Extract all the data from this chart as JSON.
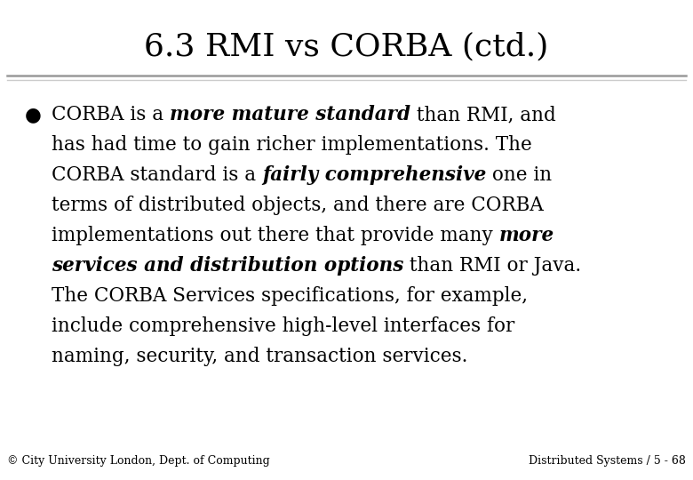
{
  "title": "6.3 RMI vs CORBA (ctd.)",
  "title_fontsize": 26,
  "background_color": "#ffffff",
  "title_color": "#000000",
  "bullet_char": "●",
  "body_fontsize": 15.5,
  "footer_left": "© City University London, Dept. of Computing",
  "footer_right": "Distributed Systems / 5 - 68",
  "footer_fontsize": 9
}
